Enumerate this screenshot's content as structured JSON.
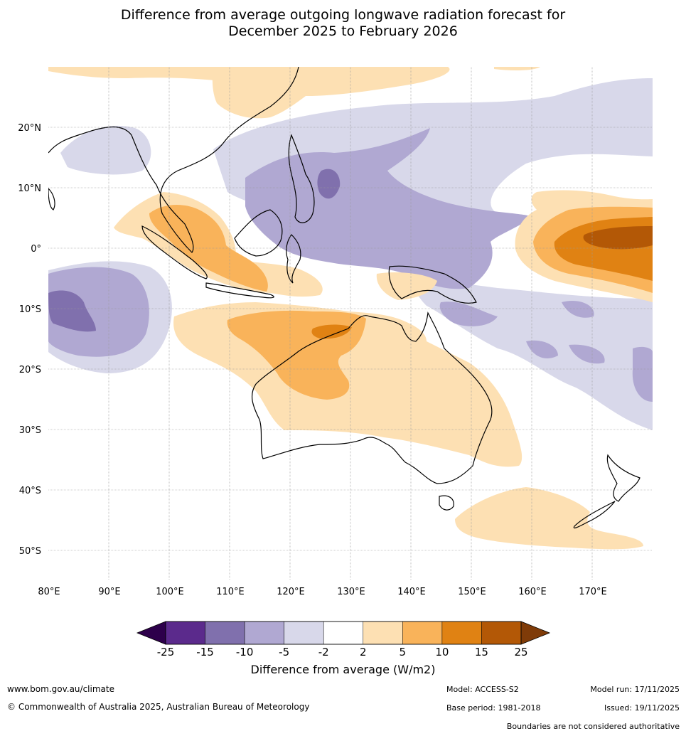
{
  "title": {
    "line1": "Difference from average outgoing longwave radiation forecast for",
    "line2": "December 2025 to February 2026"
  },
  "map": {
    "lon_range": [
      80,
      180
    ],
    "lat_range": [
      -55,
      30
    ],
    "lon_ticks": [
      "80°E",
      "90°E",
      "100°E",
      "110°E",
      "120°E",
      "130°E",
      "140°E",
      "150°E",
      "160°E",
      "170°E"
    ],
    "lat_ticks": [
      "20°N",
      "10°N",
      "0°",
      "10°S",
      "20°S",
      "30°S",
      "40°S",
      "50°S"
    ],
    "anomaly_regions": [
      "Philippines to New Guinea: -5 to -15 W/m2",
      "Western Pacific near 170°E equator: +5 to +25 W/m2",
      "Northern Australia: +2 to +15 W/m2",
      "Eastern Indian Ocean near 10°S: -5 to -15 W/m2"
    ]
  },
  "colorbar": {
    "tick_labels": [
      "-25",
      "-15",
      "-10",
      "-5",
      "-2",
      "2",
      "5",
      "10",
      "15",
      "25"
    ],
    "colors": [
      "#5b2a8c",
      "#8070ad",
      "#b0a8d2",
      "#d8d8ea",
      "#ffffff",
      "#fde0b3",
      "#f9b35a",
      "#e08213",
      "#b35806"
    ],
    "under_color": "#2d004b",
    "over_color": "#7f3b08",
    "label": "Difference from average (W/m2)"
  },
  "footer": {
    "website": "www.bom.gov.au/climate",
    "copyright": "© Commonwealth of Australia 2025, Australian Bureau of Meteorology",
    "model": "Model: ACCESS-S2",
    "base_period": "Base period: 1981-2018",
    "model_run": "Model run: 17/11/2025",
    "issued": "Issued: 19/11/2025",
    "disclaimer": "Boundaries are not considered authoritative"
  }
}
